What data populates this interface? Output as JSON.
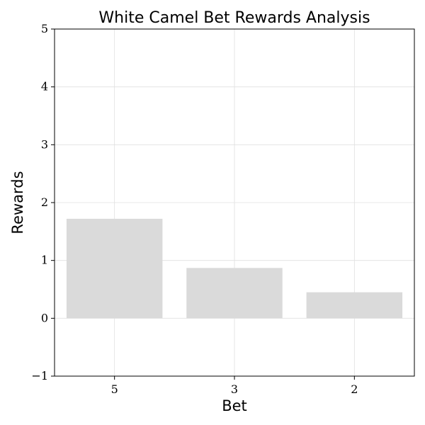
{
  "chart_data": {
    "type": "bar",
    "title": "White Camel Bet Rewards Analysis",
    "xlabel": "Bet",
    "ylabel": "Rewards",
    "categories": [
      "5",
      "3",
      "2"
    ],
    "values": [
      1.72,
      0.87,
      0.45
    ],
    "ylim": [
      -1,
      5
    ],
    "yticks": [
      -1,
      0,
      1,
      2,
      3,
      4,
      5
    ],
    "ytick_labels": [
      "−1",
      "0",
      "1",
      "2",
      "3",
      "4",
      "5"
    ],
    "grid": true,
    "bar_color": "#dadada"
  }
}
